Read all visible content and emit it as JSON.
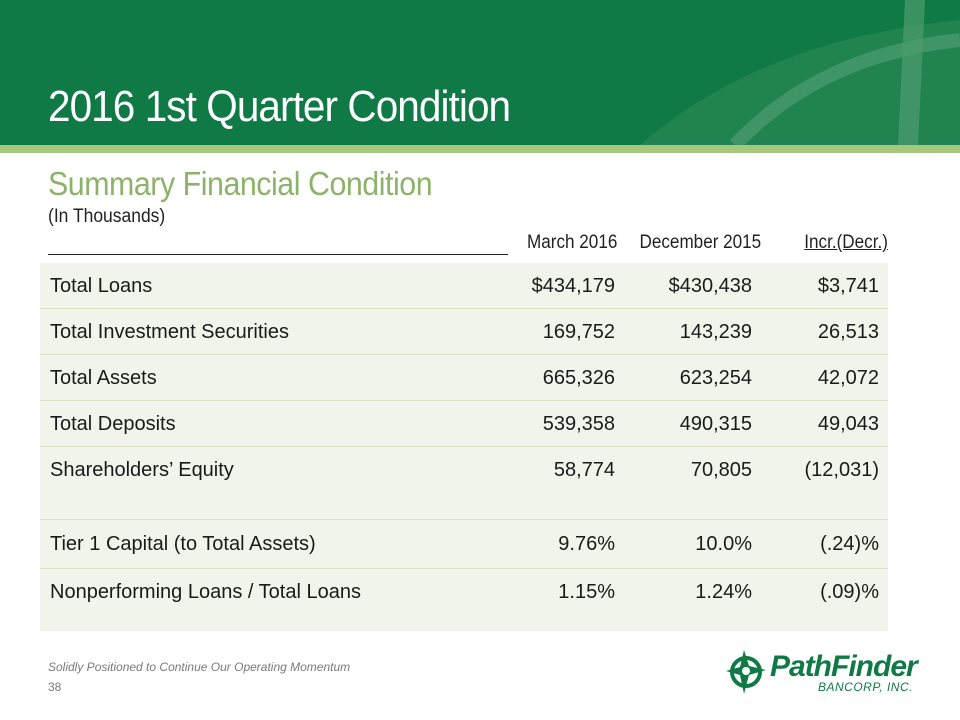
{
  "slide": {
    "title": "2016 1st Quarter Condition",
    "subtitle": "Summary Financial Condition",
    "units": "(In Thousands)"
  },
  "table": {
    "columns": [
      "March 2016",
      "December 2015",
      "Incr.(Decr.)"
    ],
    "rows": [
      {
        "label": "Total Loans",
        "values": [
          "$434,179",
          "$430,438",
          "$3,741"
        ]
      },
      {
        "label": "Total Investment Securities",
        "values": [
          "169,752",
          "143,239",
          "26,513"
        ]
      },
      {
        "label": "Total Assets",
        "values": [
          "665,326",
          "623,254",
          "42,072"
        ]
      },
      {
        "label": "Total Deposits",
        "values": [
          "539,358",
          "490,315",
          "49,043"
        ]
      },
      {
        "label": "Shareholders’ Equity",
        "values": [
          "58,774",
          "70,805",
          "(12,031)"
        ]
      },
      {
        "label": "Tier 1 Capital (to Total Assets)",
        "values": [
          "9.76%",
          "10.0%",
          "(.24)%"
        ]
      },
      {
        "label": "Nonperforming Loans / Total Loans",
        "values": [
          "1.15%",
          "1.24%",
          "(.09)%"
        ]
      }
    ]
  },
  "footer": {
    "tagline": "Solidly Positioned to Continue Our Operating Momentum",
    "page_number": "38"
  },
  "logo": {
    "name": "PathFinder",
    "sub": "BANCORP, INC."
  },
  "colors": {
    "brand_green": "#0f7a45",
    "accent_green": "#8db36a",
    "table_bg": "#f1f4ea"
  }
}
